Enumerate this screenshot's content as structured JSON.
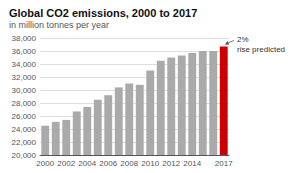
{
  "chart_data": {
    "type": "bar",
    "title": "Global CO2 emissions, 2000 to 2017",
    "subtitle": "in million tonnes per year",
    "categories": [
      "2000",
      null,
      "2002",
      null,
      "2004",
      null,
      "2006",
      null,
      "2008",
      null,
      "2010",
      null,
      "2012",
      null,
      "2014",
      null,
      null,
      "2017"
    ],
    "values": [
      24500,
      25100,
      25400,
      26700,
      27400,
      28500,
      29200,
      30400,
      31000,
      30800,
      33000,
      34500,
      35000,
      35300,
      35700,
      36000,
      36000,
      36700
    ],
    "colors": [
      "#aaaaaa",
      "#aaaaaa",
      "#aaaaaa",
      "#aaaaaa",
      "#aaaaaa",
      "#aaaaaa",
      "#aaaaaa",
      "#aaaaaa",
      "#aaaaaa",
      "#aaaaaa",
      "#aaaaaa",
      "#aaaaaa",
      "#aaaaaa",
      "#aaaaaa",
      "#aaaaaa",
      "#aaaaaa",
      "#aaaaaa",
      "#cc0000"
    ],
    "ylim": [
      20000,
      38000
    ],
    "yticks": [
      {
        "value": 20000,
        "label": "20,000"
      },
      {
        "value": 22000,
        "label": "22,000"
      },
      {
        "value": 24000,
        "label": "24,000"
      },
      {
        "value": 26000,
        "label": "26,000"
      },
      {
        "value": 28000,
        "label": "28,000"
      },
      {
        "value": 30000,
        "label": "30,000"
      },
      {
        "value": 32000,
        "label": "32,000"
      },
      {
        "value": 34000,
        "label": "34,000"
      },
      {
        "value": 36000,
        "label": "36,000"
      },
      {
        "value": 38000,
        "label": "38,000"
      }
    ],
    "grid": true,
    "annotation": "2%\nrise predicted"
  }
}
